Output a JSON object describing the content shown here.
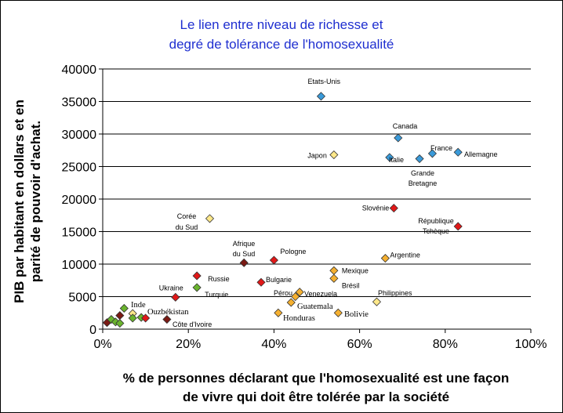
{
  "chart_data": {
    "type": "scatter",
    "title_lines": [
      "Le lien entre niveau de richesse et",
      "degré de tolérance de l'homosexualité"
    ],
    "ylabel_lines": [
      "PIB par habitant en dollars et en",
      "parité de pouvoir d'achat."
    ],
    "xlabel_lines": [
      "% de personnes déclarant que l'homosexualité est une façon",
      "de vivre qui doit être tolérée par la société"
    ],
    "xlim": [
      0,
      1
    ],
    "ylim": [
      0,
      40000
    ],
    "x_ticks": [
      0,
      0.2,
      0.4,
      0.6,
      0.8,
      1.0
    ],
    "x_tick_labels": [
      "0%",
      "20%",
      "40%",
      "60%",
      "80%",
      "100%"
    ],
    "y_ticks": [
      0,
      5000,
      10000,
      15000,
      20000,
      25000,
      30000,
      35000,
      40000
    ],
    "y_tick_labels": [
      "0",
      "5000",
      "10000",
      "15000",
      "20000",
      "25000",
      "30000",
      "35000",
      "40000"
    ],
    "grid": "horizontal",
    "legend": "none",
    "colors": {
      "blue": "#3a9ad9",
      "yellow": "#ffe88a",
      "red": "#e01818",
      "darkred": "#7a1a14",
      "orange": "#f5b030",
      "green": "#6ab42e",
      "title": "#1f2fd0"
    },
    "points": [
      {
        "label": "Etats-Unis",
        "x": 0.51,
        "y": 35800,
        "color": "blue"
      },
      {
        "label": "Canada",
        "x": 0.69,
        "y": 29400,
        "color": "blue"
      },
      {
        "label": "France",
        "x": 0.77,
        "y": 27000,
        "color": "blue"
      },
      {
        "label": "Allemagne",
        "x": 0.83,
        "y": 27200,
        "color": "blue"
      },
      {
        "label": "Italie",
        "x": 0.67,
        "y": 26400,
        "color": "blue"
      },
      {
        "label": "Grande Bretagne",
        "x": 0.74,
        "y": 26200,
        "color": "blue"
      },
      {
        "label": "Japon",
        "x": 0.54,
        "y": 26800,
        "color": "yellow"
      },
      {
        "label": "Slovénie",
        "x": 0.68,
        "y": 18600,
        "color": "red"
      },
      {
        "label": "République Tchèque",
        "x": 0.83,
        "y": 15800,
        "color": "red"
      },
      {
        "label": "Corée du Sud",
        "x": 0.25,
        "y": 17000,
        "color": "yellow"
      },
      {
        "label": "Afrique du Sud",
        "x": 0.33,
        "y": 10200,
        "color": "darkred"
      },
      {
        "label": "Pologne",
        "x": 0.4,
        "y": 10600,
        "color": "red"
      },
      {
        "label": "Argentine",
        "x": 0.66,
        "y": 10900,
        "color": "orange"
      },
      {
        "label": "Russie",
        "x": 0.22,
        "y": 8200,
        "color": "red"
      },
      {
        "label": "Bulgarie",
        "x": 0.37,
        "y": 7200,
        "color": "red"
      },
      {
        "label": "Mexique",
        "x": 0.54,
        "y": 9000,
        "color": "orange"
      },
      {
        "label": "Brésil",
        "x": 0.54,
        "y": 7800,
        "color": "orange"
      },
      {
        "label": "Ukraine",
        "x": 0.17,
        "y": 4900,
        "color": "red"
      },
      {
        "label": "Turquie",
        "x": 0.22,
        "y": 6400,
        "color": "green"
      },
      {
        "label": "Pérou",
        "x": 0.45,
        "y": 5000,
        "color": "orange"
      },
      {
        "label": "Venezuela",
        "x": 0.46,
        "y": 5700,
        "color": "orange"
      },
      {
        "label": "Philippines",
        "x": 0.64,
        "y": 4200,
        "color": "yellow"
      },
      {
        "label": "Guatemala",
        "x": 0.44,
        "y": 4100,
        "color": "orange"
      },
      {
        "label": "Honduras",
        "x": 0.41,
        "y": 2500,
        "color": "orange"
      },
      {
        "label": "Bolivie",
        "x": 0.55,
        "y": 2500,
        "color": "orange"
      },
      {
        "label": "Inde",
        "x": 0.05,
        "y": 3200,
        "color": "green"
      },
      {
        "label": "Ouzbékistan",
        "x": 0.09,
        "y": 1800,
        "color": "green"
      },
      {
        "label": "Côte d'Ivoire",
        "x": 0.15,
        "y": 1500,
        "color": "darkred"
      },
      {
        "label": "",
        "x": 0.01,
        "y": 1000,
        "color": "darkred"
      },
      {
        "label": "",
        "x": 0.02,
        "y": 1500,
        "color": "green"
      },
      {
        "label": "",
        "x": 0.03,
        "y": 1100,
        "color": "green"
      },
      {
        "label": "",
        "x": 0.04,
        "y": 900,
        "color": "green"
      },
      {
        "label": "",
        "x": 0.04,
        "y": 2100,
        "color": "darkred"
      },
      {
        "label": "",
        "x": 0.07,
        "y": 2400,
        "color": "yellow"
      },
      {
        "label": "",
        "x": 0.07,
        "y": 1700,
        "color": "green"
      },
      {
        "label": "",
        "x": 0.1,
        "y": 1700,
        "color": "red"
      }
    ]
  }
}
